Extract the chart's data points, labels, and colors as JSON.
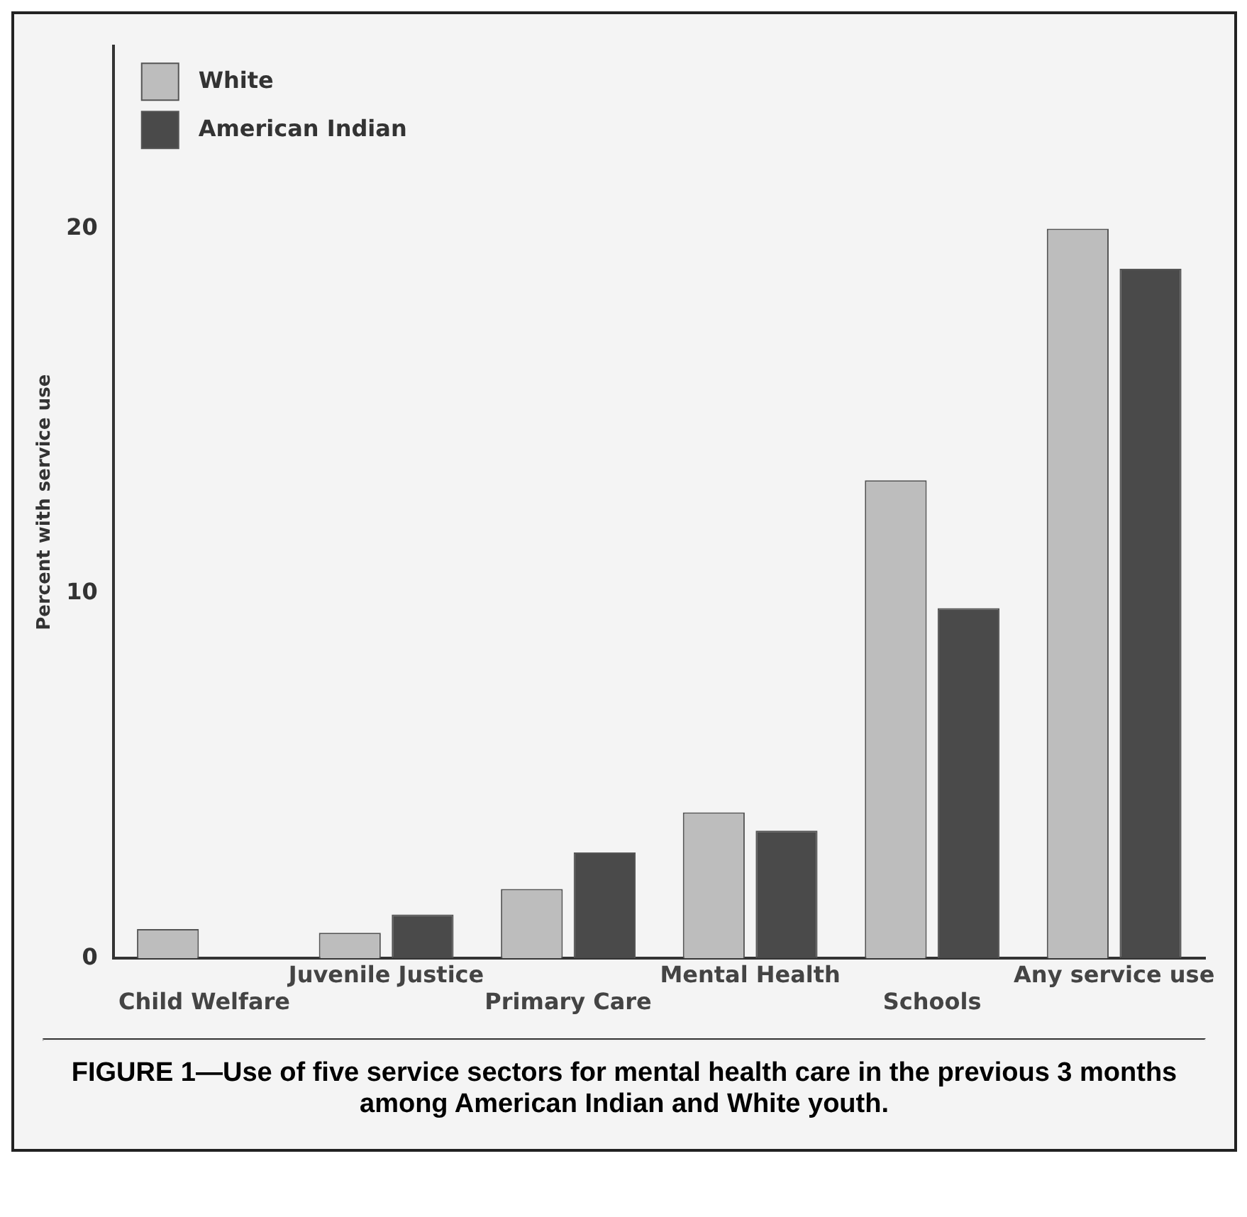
{
  "chart_data": {
    "type": "bar",
    "ylabel": "Percent with service use",
    "categories": [
      "Child Welfare",
      "Juvenile Justice",
      "Primary Care",
      "Mental Health",
      "Schools",
      "Any service use"
    ],
    "series": [
      {
        "name": "White",
        "color": "#bdbdbd",
        "values": [
          0.8,
          0.7,
          1.9,
          4.0,
          13.1,
          20.0
        ]
      },
      {
        "name": "American Indian",
        "color": "#4a4a4a",
        "values": [
          0,
          1.2,
          2.9,
          3.5,
          9.6,
          18.9
        ]
      }
    ],
    "ylim": [
      0,
      25
    ],
    "yticks": [
      0,
      10,
      20
    ],
    "grid": false,
    "legend": "top left",
    "annotations": [
      "FIGURE 1—Use of five service sectors for mental health care in the previous 3 months among American Indian and White youth."
    ]
  }
}
